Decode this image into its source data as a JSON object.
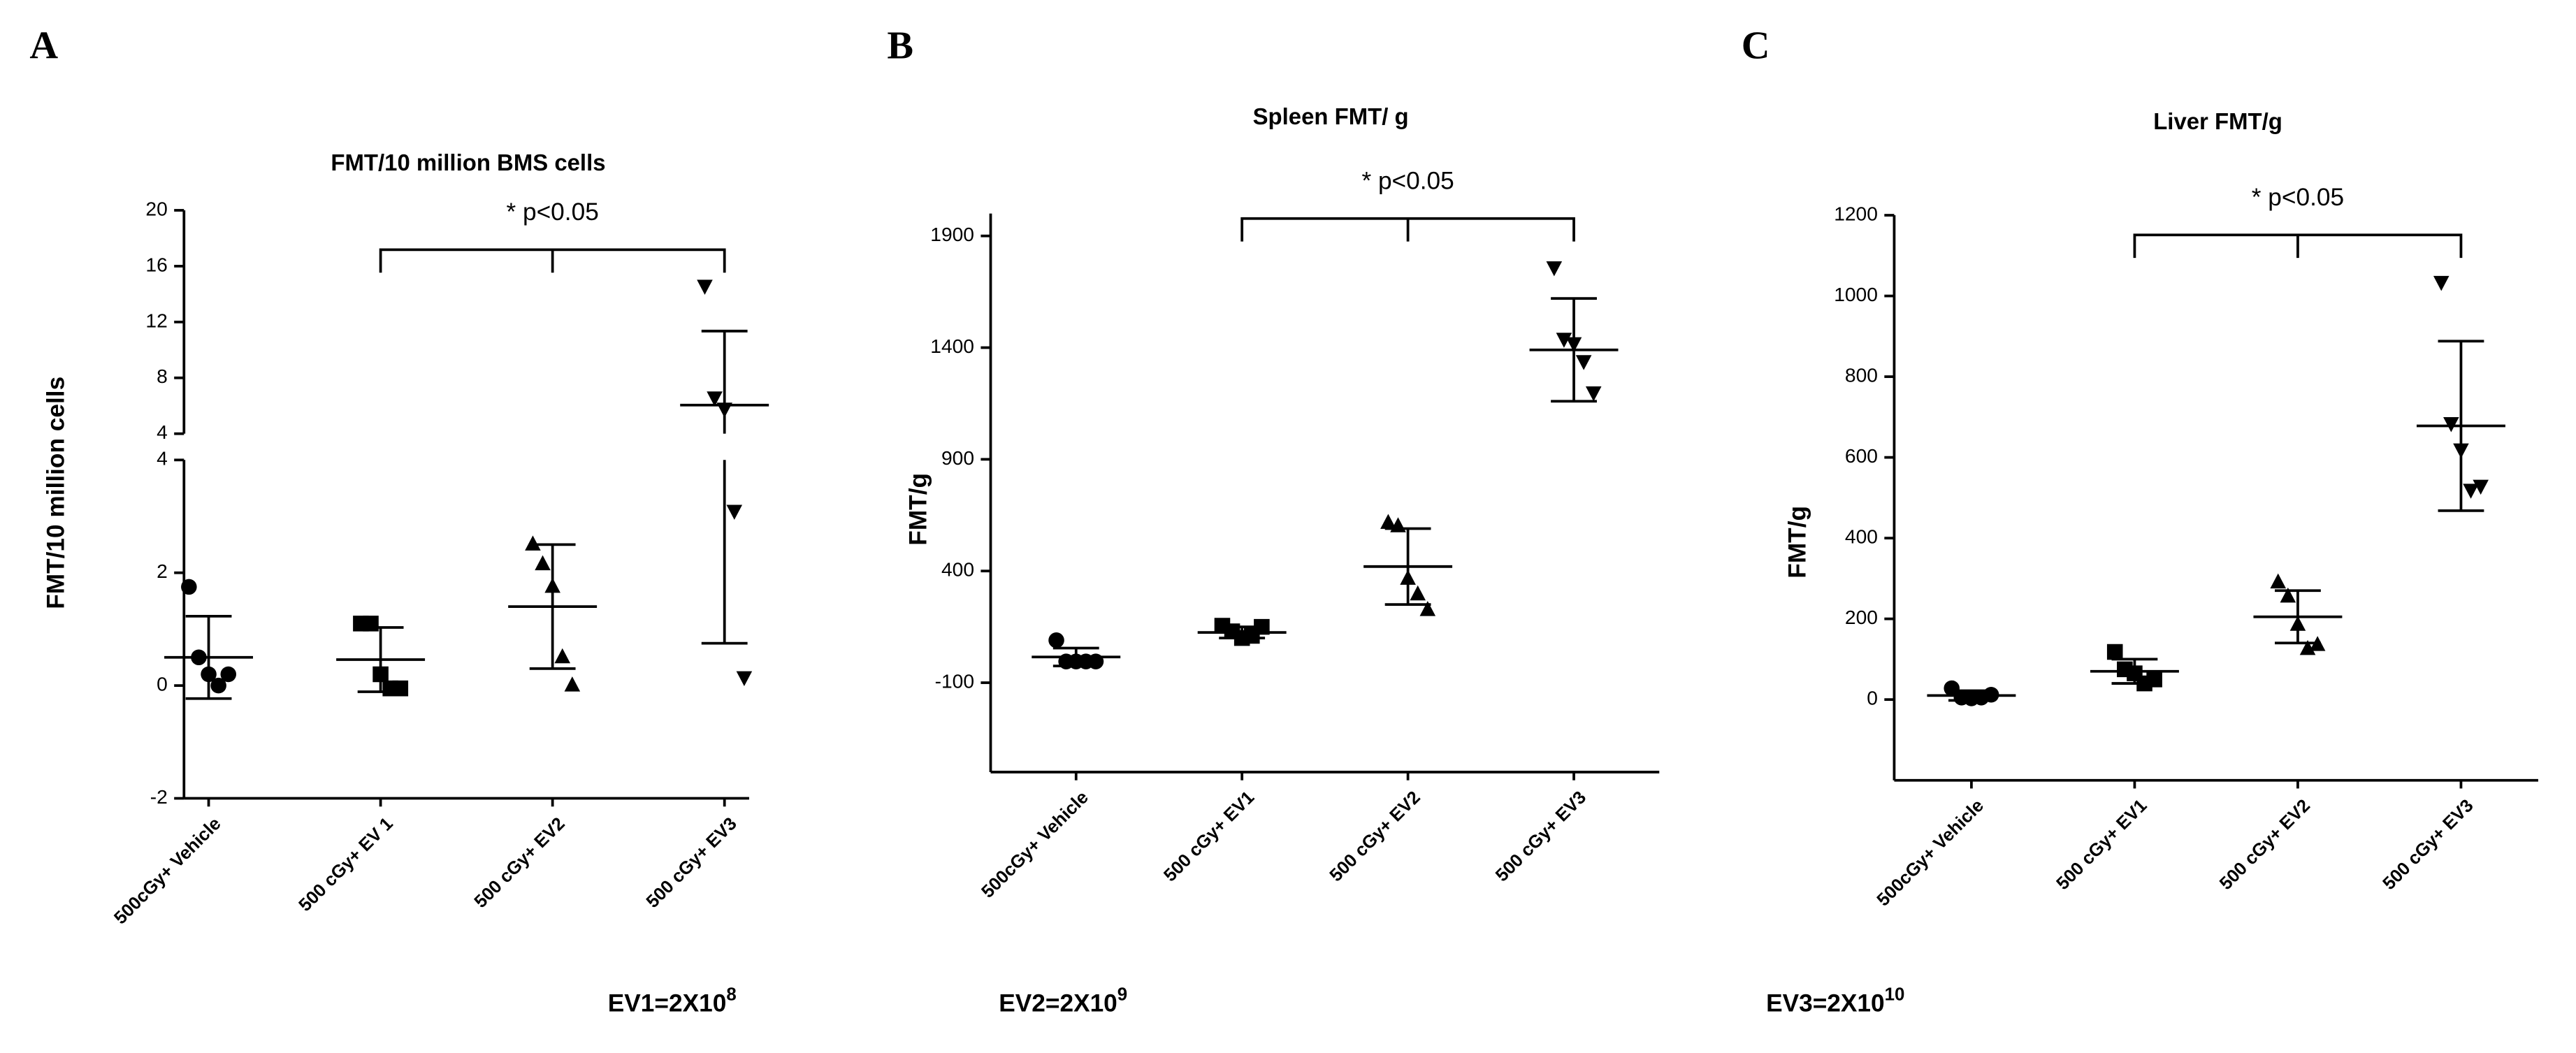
{
  "chart_data": [
    {
      "type": "scatter",
      "panel": "A",
      "title": "FMT/10 million BMS cells",
      "ylabel": "FMT/10 million cells",
      "annotation": "* p<0.05",
      "categories": [
        "500cGy+ Vehicle",
        "500 cGy+ EV 1",
        "500 cGy+ EV2",
        "500 cGy+ EV3"
      ],
      "markers": [
        "circle",
        "square",
        "triangle-up",
        "triangle-down"
      ],
      "color": "#000000",
      "points": [
        [
          1.75,
          0.5,
          0.2,
          0.0,
          0.2
        ],
        [
          1.1,
          1.1,
          0.2,
          -0.05,
          -0.05
        ],
        [
          2.5,
          2.15,
          1.75,
          0.5,
          0.0
        ],
        [
          14.6,
          6.6,
          5.8,
          3.1,
          0.15
        ]
      ],
      "means": [
        0.5,
        0.46,
        1.4,
        6.05
      ],
      "sds": [
        0.73,
        0.57,
        1.1,
        5.3
      ],
      "ylim": [
        -2,
        4
      ],
      "yticks": [
        -2,
        0,
        2,
        4
      ],
      "ylim_upper": [
        4,
        20
      ],
      "yticks_upper": [
        4,
        8,
        12,
        16,
        20
      ]
    },
    {
      "type": "scatter",
      "panel": "B",
      "title": "Spleen  FMT/ g",
      "ylabel": "FMT/g",
      "annotation": "* p<0.05",
      "categories": [
        "500cGy+ Vehicle",
        "500 cGy+ EV1",
        "500 cGy+ EV2",
        "500 cGy+ EV3"
      ],
      "markers": [
        "circle",
        "square",
        "triangle-up",
        "triangle-down"
      ],
      "color": "#000000",
      "points": [
        [
          90,
          -5,
          -5,
          -5,
          -5
        ],
        [
          155,
          130,
          100,
          110,
          150
        ],
        [
          615,
          600,
          365,
          295,
          225
        ],
        [
          1760,
          1440,
          1420,
          1340,
          1200
        ]
      ],
      "means": [
        15,
        125,
        420,
        1390
      ],
      "sds": [
        40,
        25,
        170,
        230
      ],
      "ylim": [
        -500,
        2000
      ],
      "yticks": [
        -100,
        400,
        900,
        1400,
        1900
      ]
    },
    {
      "type": "scatter",
      "panel": "C",
      "title": "Liver FMT/g",
      "ylabel": "FMT/g",
      "annotation": "* p<0.05",
      "categories": [
        "500cGy+ Vehicle",
        "500 cGy+ EV1",
        "500 cGy+ EV2",
        "500 cGy+ EV3"
      ],
      "markers": [
        "circle",
        "square",
        "triangle-up",
        "triangle-down"
      ],
      "color": "#000000",
      "points": [
        [
          28,
          5,
          3,
          5,
          12
        ],
        [
          118,
          75,
          65,
          40,
          50
        ],
        [
          290,
          255,
          185,
          125,
          135
        ],
        [
          1035,
          685,
          620,
          520,
          530
        ]
      ],
      "means": [
        10,
        70,
        205,
        678
      ],
      "sds": [
        12,
        30,
        65,
        210
      ],
      "ylim": [
        -200,
        1200
      ],
      "yticks": [
        0,
        200,
        400,
        600,
        800,
        1000,
        1200
      ]
    }
  ],
  "footnotes": [
    {
      "text": "EV1=2X10",
      "exponent": "8"
    },
    {
      "text": "EV2=2X10",
      "exponent": "9"
    },
    {
      "text": "EV3=2X10",
      "exponent": "10"
    }
  ]
}
